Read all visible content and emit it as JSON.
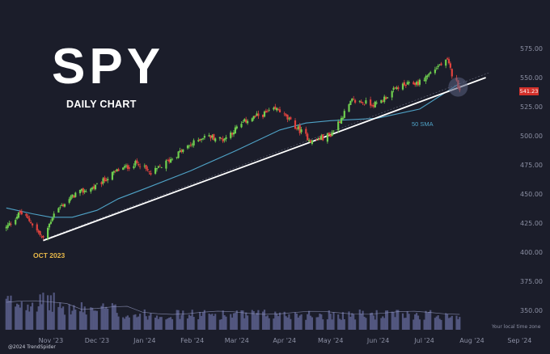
{
  "header": {
    "title": "SPY",
    "subtitle": "DAILY CHART"
  },
  "annotations": {
    "low_label": "OCT 2023",
    "sma_label": "50 SMA",
    "last_price": "541.23",
    "timezone_note": "Your local time zone",
    "credit": "@2024 TrendSpider"
  },
  "colors": {
    "background": "#1b1d2a",
    "up_candle": "#6fcf4f",
    "down_candle": "#e0433e",
    "sma_line": "#4fa3c7",
    "trendline": "#ffffff",
    "volume_bar": "#5a5f8c",
    "low_annotation": "#e9b949",
    "price_badge": "#d3312b"
  },
  "chart_data": {
    "type": "candlestick",
    "title": "SPY",
    "subtitle": "DAILY CHART",
    "y_ticks": [
      575.0,
      550.0,
      525.0,
      500.0,
      475.0,
      450.0,
      425.0,
      400.0,
      375.0,
      350.0
    ],
    "y_tick_labels": [
      "575.00",
      "550.00",
      "525.00",
      "500.00",
      "475.00",
      "450.00",
      "425.00",
      "400.00",
      "375.00",
      "350.00"
    ],
    "x_ticks": [
      "Nov '23",
      "Dec '23",
      "Jan '24",
      "Feb '24",
      "Mar '24",
      "Apr '24",
      "May '24",
      "Jun '24",
      "Jul '24",
      "Aug '24",
      "Sep '24"
    ],
    "price_range": [
      400,
      575
    ],
    "date_range": [
      "2023-10-03",
      "2024-07-24"
    ],
    "price_path": [
      [
        "2023-10-03",
        421
      ],
      [
        "2023-10-12",
        434
      ],
      [
        "2023-10-19",
        426
      ],
      [
        "2023-10-27",
        411
      ],
      [
        "2023-11-03",
        434
      ],
      [
        "2023-11-17",
        450
      ],
      [
        "2023-11-30",
        456
      ],
      [
        "2023-12-14",
        470
      ],
      [
        "2023-12-28",
        477
      ],
      [
        "2024-01-05",
        467
      ],
      [
        "2024-01-23",
        485
      ],
      [
        "2024-02-09",
        500
      ],
      [
        "2024-02-21",
        497
      ],
      [
        "2024-03-08",
        514
      ],
      [
        "2024-03-28",
        523
      ],
      [
        "2024-04-04",
        513
      ],
      [
        "2024-04-19",
        495
      ],
      [
        "2024-05-01",
        501
      ],
      [
        "2024-05-15",
        530
      ],
      [
        "2024-05-31",
        527
      ],
      [
        "2024-06-14",
        542
      ],
      [
        "2024-06-28",
        546
      ],
      [
        "2024-07-10",
        560
      ],
      [
        "2024-07-16",
        564
      ],
      [
        "2024-07-19",
        553
      ],
      [
        "2024-07-24",
        541
      ]
    ],
    "sma50_path": [
      [
        "2023-10-03",
        438
      ],
      [
        "2023-10-20",
        433
      ],
      [
        "2023-11-01",
        430
      ],
      [
        "2023-11-15",
        430
      ],
      [
        "2023-12-01",
        436
      ],
      [
        "2023-12-15",
        446
      ],
      [
        "2024-01-02",
        455
      ],
      [
        "2024-01-31",
        470
      ],
      [
        "2024-02-29",
        487
      ],
      [
        "2024-03-29",
        505
      ],
      [
        "2024-04-15",
        511
      ],
      [
        "2024-05-01",
        513
      ],
      [
        "2024-05-31",
        515
      ],
      [
        "2024-06-28",
        523
      ],
      [
        "2024-07-24",
        545
      ]
    ],
    "trendline": {
      "from": [
        "2023-10-27",
        410
      ],
      "to": [
        "2024-08-10",
        550
      ]
    },
    "last_price": 541.23,
    "volume_scale": "relative",
    "volume_peak_month": "Oct '23",
    "gridlines": false,
    "legend": "none"
  }
}
